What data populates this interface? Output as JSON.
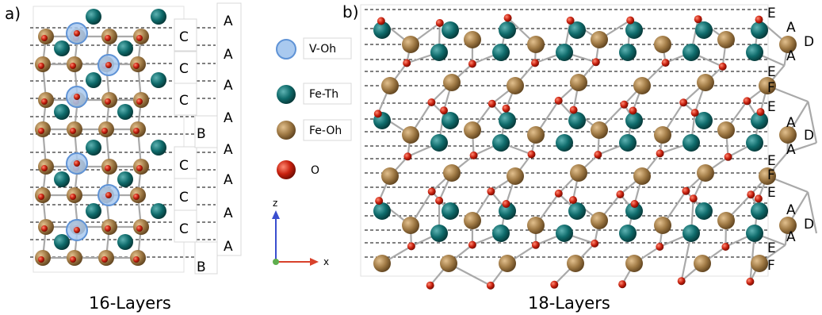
{
  "panel_a": {
    "label": "a)",
    "caption": "16-Layers",
    "layers": [
      "C",
      "A",
      "C",
      "A",
      "A",
      "C",
      "A",
      "B",
      "A",
      "C",
      "A",
      "C",
      "A",
      "C",
      "A",
      "B"
    ]
  },
  "panel_b": {
    "label": "b)",
    "caption": "18-Layers",
    "layers": [
      "E",
      "A",
      "D",
      "A",
      "E",
      "F",
      "E",
      "A",
      "D",
      "A",
      "E",
      "F",
      "E",
      "A",
      "D",
      "A",
      "E",
      "F"
    ]
  },
  "legend": {
    "items": [
      {
        "label": "V-Oh",
        "kind": "vacancy",
        "color": "#a9c9ef"
      },
      {
        "label": "Fe-Th",
        "kind": "fe-th",
        "color": "#0f6b6b"
      },
      {
        "label": "Fe-Oh",
        "kind": "fe-oh",
        "color": "#a07a45"
      },
      {
        "label": "O",
        "kind": "oxygen",
        "color": "#c8200e"
      }
    ]
  },
  "axes": {
    "z_label": "z",
    "x_label": "x",
    "z_color": "#3a4ecf",
    "x_color": "#d8412b"
  }
}
